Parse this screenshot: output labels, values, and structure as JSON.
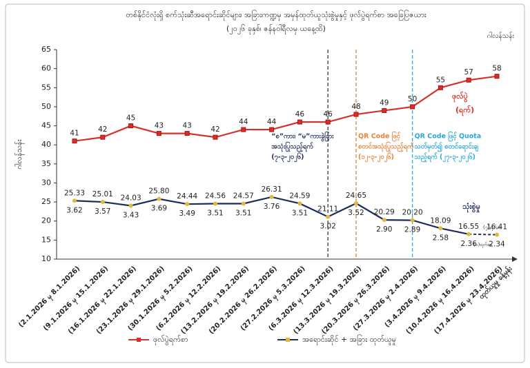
{
  "chart_data": {
    "type": "line",
    "title": "တစ်နိုင်ငံလုံးရှိ စက်သုံးဆီအရောင်းဆိုင်များ၊ အခြားကဏ္ဍမှ အမှန်ထုတ်ယူသုံးစွဲမှုနှင့် ဖုလ်ပွဲရက်စာ အခြေပြဇယား",
    "subtitle": "(၂၀၂၆ ခုနှစ်၊ ဇန်နဝါရီလမှ ယနေ့ထိ)",
    "unit": "ဂါလန်သန်း",
    "y_label": "ဂါလန်သန်း",
    "categories": [
      "(2.1.2026 မှ 8.1.2026)",
      "(9.1.2026 မှ 15.1.2026)",
      "(16.1.2026 မှ 22.1.2026)",
      "(23.1.2026 မှ 29.1.2026)",
      "(30.1.2026 မှ 5.2.2026)",
      "(6.2.2026 မှ 12.2.2026)",
      "(13.2.2026 မှ 19.2.2026)",
      "(20.2.2026 မှ 26.2.2026)",
      "(27.2.2026 မှ 5.3.2026)",
      "(6.3.2026 မှ 12.3.2026)",
      "(13.3.2026 မှ 19.3.2026)",
      "(20.3.2026 မှ 26.3.2026)",
      "(27.3.2026 မှ 2.4.2026)",
      "(3.4.2026 မှ 9.4.2026)",
      "(10.4.2026 မှ 16.4.2026)",
      "(17.4.2026 မှ 23.4.2026)"
    ],
    "x_note": "ထုတ်ယူမှု ခန့်မှန်း",
    "series": [
      {
        "name": "ဖုလ်ပွဲရက်စာ",
        "color": "#d7302a",
        "tag": "ဖုလ်ပွဲ",
        "tag2": "(ရက်)",
        "values": [
          41,
          42,
          45,
          43,
          43,
          42,
          44,
          44,
          46,
          46,
          48,
          49,
          50,
          55,
          57,
          58
        ]
      },
      {
        "name": "အရောင်းဆိုင် + အခြား ထုတ်ယူမှု",
        "color": "#1f2a5c",
        "tag": "သုံးစွဲမှု",
        "values": [
          25.33,
          25.01,
          24.03,
          25.8,
          24.44,
          24.56,
          24.57,
          26.31,
          24.59,
          21.11,
          24.65,
          20.29,
          20.2,
          18.09,
          16.55,
          16.41
        ],
        "value_labels": [
          "25.33",
          "25.01",
          "24.03",
          "25.80",
          "24.44",
          "24.56",
          "24.57",
          "26.31",
          "24.59",
          "21.11",
          "24.65",
          "20.29",
          "20.20",
          "18.09",
          "16.55",
          "16.41"
        ],
        "sub_values": [
          3.62,
          3.57,
          3.43,
          3.69,
          3.49,
          3.51,
          3.51,
          3.76,
          3.51,
          3.02,
          3.52,
          2.9,
          2.89,
          2.58,
          2.36,
          2.34
        ],
        "sub_value_labels": [
          "3.62",
          "3.57",
          "3.43",
          "3.69",
          "3.49",
          "3.51",
          "3.51",
          "3.76",
          "3.51",
          "3.02",
          "3.52",
          "2.90",
          "2.89",
          "2.58",
          "2.36",
          "2.34"
        ]
      }
    ],
    "day_notes": [
      "(၇)ရက်စာ",
      "(၁)ရက်စာ"
    ],
    "events": [
      {
        "index": 9,
        "color": "#333333",
        "lines": [
          "“စ”ကား၊ “မ”ကားခွဲခြား",
          "အသုံးပြုသည့်ရက်",
          "(၇-၃-၂၀၂၆)"
        ]
      },
      {
        "index": 10,
        "color": "#e8833a",
        "lines": [
          "QR Code ဖြင့်",
          "စတင်အသုံးပြုသည့်ရက်",
          "(၁၂-၃-၂၀၂၆)"
        ]
      },
      {
        "index": 12,
        "color": "#2aa9d8",
        "lines": [
          "QR Code ဖြင့် Quota",
          "သတ်မှတ်၍ စတင်ရောင်းချ",
          "သည့်ရက် (၂၇-၃-၂၀၂၆)"
        ]
      }
    ],
    "ylim": [
      10,
      65
    ],
    "yticks": [
      10,
      15,
      20,
      25,
      30,
      35,
      40,
      45,
      50,
      55,
      60,
      65
    ],
    "grid": false
  }
}
